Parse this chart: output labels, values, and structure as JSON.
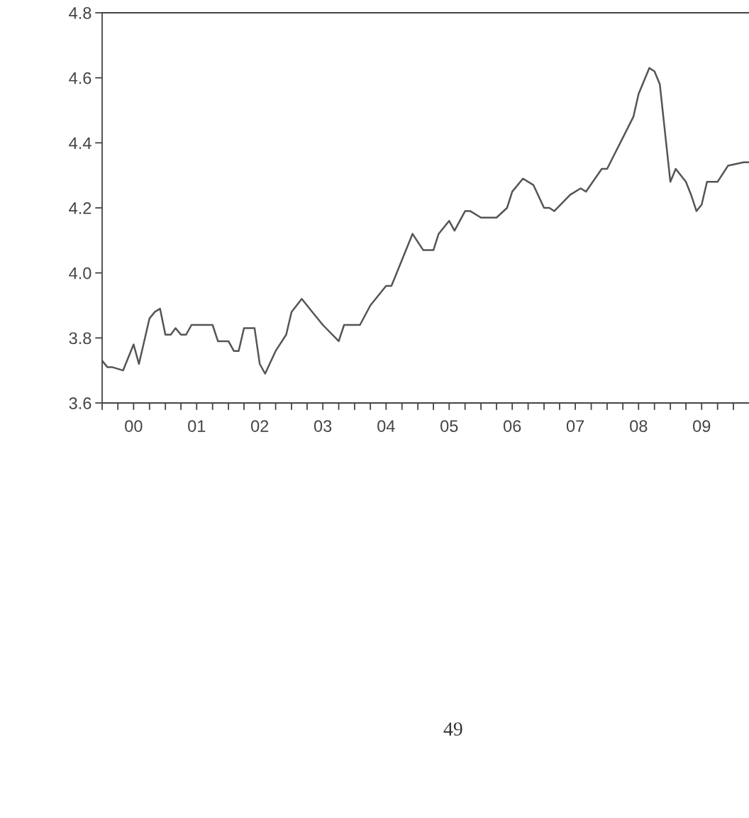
{
  "chart_data": {
    "type": "line",
    "series": [
      {
        "color": "#555555",
        "x": [
          "2000-01",
          "2000-02",
          "2000-03",
          "2000-05",
          "2000-07",
          "2000-08",
          "2000-10",
          "2000-11",
          "2000-12",
          "2001-01",
          "2001-02",
          "2001-03",
          "2001-04",
          "2001-05",
          "2001-06",
          "2001-10",
          "2001-11",
          "2002-01",
          "2002-02",
          "2002-03",
          "2002-04",
          "2002-06",
          "2002-07",
          "2002-08",
          "2002-10",
          "2002-12",
          "2003-01",
          "2003-03",
          "2003-05",
          "2003-07",
          "2003-10",
          "2003-11",
          "2004-01",
          "2004-02",
          "2004-04",
          "2004-07",
          "2004-08",
          "2004-12",
          "2005-02",
          "2005-04",
          "2005-05",
          "2005-07",
          "2005-08",
          "2005-10",
          "2005-11",
          "2006-01",
          "2006-04",
          "2006-06",
          "2006-07",
          "2006-09",
          "2006-11",
          "2007-01",
          "2007-02",
          "2007-03",
          "2007-06",
          "2007-08",
          "2007-09",
          "2007-12",
          "2008-01",
          "2008-06",
          "2008-07",
          "2008-09",
          "2008-10",
          "2008-11",
          "2009-01",
          "2009-02",
          "2009-04",
          "2009-05",
          "2009-06",
          "2009-07",
          "2009-08",
          "2009-09",
          "2009-10",
          "2009-12",
          "2010-03",
          "2010-04"
        ],
        "values": [
          3.73,
          3.71,
          3.71,
          3.7,
          3.78,
          3.72,
          3.86,
          3.88,
          3.89,
          3.81,
          3.81,
          3.83,
          3.81,
          3.81,
          3.84,
          3.84,
          3.79,
          3.79,
          3.76,
          3.76,
          3.83,
          3.83,
          3.72,
          3.69,
          3.76,
          3.81,
          3.88,
          3.92,
          3.88,
          3.84,
          3.79,
          3.84,
          3.84,
          3.84,
          3.9,
          3.96,
          3.96,
          4.12,
          4.07,
          4.07,
          4.12,
          4.16,
          4.13,
          4.19,
          4.19,
          4.17,
          4.17,
          4.2,
          4.25,
          4.29,
          4.27,
          4.2,
          4.2,
          4.19,
          4.24,
          4.26,
          4.25,
          4.32,
          4.32,
          4.48,
          4.55,
          4.63,
          4.62,
          4.58,
          4.28,
          4.32,
          4.28,
          4.24,
          4.19,
          4.21,
          4.28,
          4.28,
          4.28,
          4.33,
          4.34,
          4.34
        ]
      }
    ],
    "xlim": [
      "2000-01",
      "2010-04"
    ],
    "xticks": [
      {
        "value": "2000-01",
        "label": null
      },
      {
        "value": "2000-04",
        "label": null
      },
      {
        "value": "2000-07",
        "label": "00"
      },
      {
        "value": "2000-10",
        "label": null
      },
      {
        "value": "2001-01",
        "label": null
      },
      {
        "value": "2001-04",
        "label": null
      },
      {
        "value": "2001-07",
        "label": "01"
      },
      {
        "value": "2001-10",
        "label": null
      },
      {
        "value": "2002-01",
        "label": null
      },
      {
        "value": "2002-04",
        "label": null
      },
      {
        "value": "2002-07",
        "label": "02"
      },
      {
        "value": "2002-10",
        "label": null
      },
      {
        "value": "2003-01",
        "label": null
      },
      {
        "value": "2003-04",
        "label": null
      },
      {
        "value": "2003-07",
        "label": "03"
      },
      {
        "value": "2003-10",
        "label": null
      },
      {
        "value": "2004-01",
        "label": null
      },
      {
        "value": "2004-04",
        "label": null
      },
      {
        "value": "2004-07",
        "label": "04"
      },
      {
        "value": "2004-10",
        "label": null
      },
      {
        "value": "2005-01",
        "label": null
      },
      {
        "value": "2005-04",
        "label": null
      },
      {
        "value": "2005-07",
        "label": "05"
      },
      {
        "value": "2005-10",
        "label": null
      },
      {
        "value": "2006-01",
        "label": null
      },
      {
        "value": "2006-04",
        "label": null
      },
      {
        "value": "2006-07",
        "label": "06"
      },
      {
        "value": "2006-10",
        "label": null
      },
      {
        "value": "2007-01",
        "label": null
      },
      {
        "value": "2007-04",
        "label": null
      },
      {
        "value": "2007-07",
        "label": "07"
      },
      {
        "value": "2007-10",
        "label": null
      },
      {
        "value": "2008-01",
        "label": null
      },
      {
        "value": "2008-04",
        "label": null
      },
      {
        "value": "2008-07",
        "label": "08"
      },
      {
        "value": "2008-10",
        "label": null
      },
      {
        "value": "2009-01",
        "label": null
      },
      {
        "value": "2009-04",
        "label": null
      },
      {
        "value": "2009-07",
        "label": "09"
      },
      {
        "value": "2009-10",
        "label": null
      },
      {
        "value": "2010-01",
        "label": null
      }
    ],
    "ylim": [
      3.6,
      4.8
    ],
    "yticks": [
      {
        "value": 3.6,
        "label": "3.6"
      },
      {
        "value": 3.8,
        "label": "3.8"
      },
      {
        "value": 4.0,
        "label": "4.0"
      },
      {
        "value": 4.2,
        "label": "4.2"
      },
      {
        "value": 4.4,
        "label": "4.4"
      },
      {
        "value": 4.6,
        "label": "4.6"
      },
      {
        "value": 4.8,
        "label": "4.8"
      }
    ],
    "grid": false,
    "legend": false,
    "marker": "none",
    "line_style": "solid",
    "annotations": [
      "49"
    ]
  }
}
